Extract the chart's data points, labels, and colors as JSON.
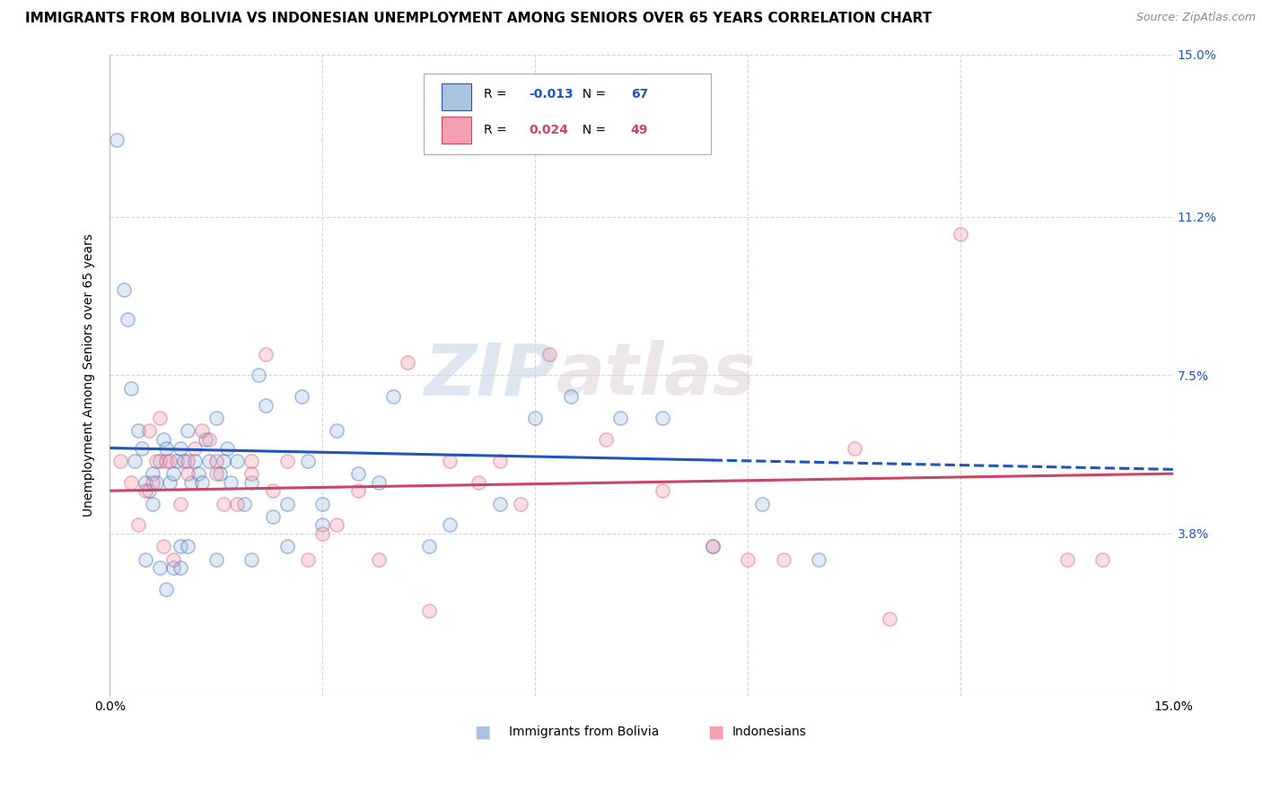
{
  "title": "IMMIGRANTS FROM BOLIVIA VS INDONESIAN UNEMPLOYMENT AMONG SENIORS OVER 65 YEARS CORRELATION CHART",
  "source": "Source: ZipAtlas.com",
  "ylabel": "Unemployment Among Seniors over 65 years",
  "xlim": [
    0.0,
    15.0
  ],
  "ylim": [
    0.0,
    15.0
  ],
  "yticks": [
    0.0,
    3.8,
    7.5,
    11.2,
    15.0
  ],
  "ytick_labels": [
    "",
    "3.8%",
    "7.5%",
    "11.2%",
    "15.0%"
  ],
  "legend_entries": [
    {
      "label": "Immigrants from Bolivia",
      "R": -0.013,
      "N": 67,
      "color": "#a8c4e0"
    },
    {
      "label": "Indonesians",
      "R": 0.024,
      "N": 49,
      "color": "#f4a0b0"
    }
  ],
  "watermark_zip": "ZIP",
  "watermark_atlas": "atlas",
  "blue_scatter_x": [
    0.1,
    0.2,
    0.25,
    0.3,
    0.35,
    0.4,
    0.45,
    0.5,
    0.55,
    0.6,
    0.65,
    0.7,
    0.75,
    0.8,
    0.85,
    0.9,
    0.95,
    1.0,
    1.05,
    1.1,
    1.15,
    1.2,
    1.25,
    1.3,
    1.35,
    1.4,
    1.5,
    1.55,
    1.6,
    1.65,
    1.7,
    1.8,
    1.9,
    2.0,
    2.1,
    2.2,
    2.3,
    2.5,
    2.7,
    2.8,
    3.0,
    3.2,
    3.5,
    3.8,
    4.0,
    4.5,
    4.8,
    5.5,
    6.0,
    6.5,
    7.2,
    7.8,
    8.5,
    9.2,
    10.0,
    2.0,
    1.0,
    0.6,
    0.7,
    0.8,
    0.9,
    1.0,
    1.1,
    0.5,
    1.5,
    2.5,
    3.0
  ],
  "blue_scatter_y": [
    13.0,
    9.5,
    8.8,
    7.2,
    5.5,
    6.2,
    5.8,
    5.0,
    4.8,
    5.2,
    5.0,
    5.5,
    6.0,
    5.8,
    5.0,
    5.2,
    5.5,
    5.8,
    5.5,
    6.2,
    5.0,
    5.5,
    5.2,
    5.0,
    6.0,
    5.5,
    6.5,
    5.2,
    5.5,
    5.8,
    5.0,
    5.5,
    4.5,
    5.0,
    7.5,
    6.8,
    4.2,
    4.5,
    7.0,
    5.5,
    4.5,
    6.2,
    5.2,
    5.0,
    7.0,
    3.5,
    4.0,
    4.5,
    6.5,
    7.0,
    6.5,
    6.5,
    3.5,
    4.5,
    3.2,
    3.2,
    3.5,
    4.5,
    3.0,
    2.5,
    3.0,
    3.0,
    3.5,
    3.2,
    3.2,
    3.5,
    4.0
  ],
  "pink_scatter_x": [
    0.15,
    0.3,
    0.4,
    0.5,
    0.6,
    0.65,
    0.7,
    0.8,
    0.85,
    0.9,
    1.0,
    1.1,
    1.2,
    1.3,
    1.4,
    1.5,
    1.6,
    1.8,
    2.0,
    2.2,
    2.5,
    2.8,
    3.0,
    3.5,
    3.8,
    4.2,
    4.8,
    5.2,
    5.8,
    6.2,
    7.0,
    7.8,
    8.5,
    9.0,
    9.5,
    10.5,
    11.0,
    12.0,
    13.5,
    14.0,
    0.55,
    0.75,
    1.1,
    1.5,
    2.0,
    2.3,
    3.2,
    4.5,
    5.5
  ],
  "pink_scatter_y": [
    5.5,
    5.0,
    4.0,
    4.8,
    5.0,
    5.5,
    6.5,
    5.5,
    5.5,
    3.2,
    4.5,
    5.2,
    5.8,
    6.2,
    6.0,
    5.2,
    4.5,
    4.5,
    5.2,
    8.0,
    5.5,
    3.2,
    3.8,
    4.8,
    3.2,
    7.8,
    5.5,
    5.0,
    4.5,
    8.0,
    6.0,
    4.8,
    3.5,
    3.2,
    3.2,
    5.8,
    1.8,
    10.8,
    3.2,
    3.2,
    6.2,
    3.5,
    5.5,
    5.5,
    5.5,
    4.8,
    4.0,
    2.0,
    5.5
  ],
  "blue_line_color": "#2255bb",
  "pink_line_color": "#cc4466",
  "blue_trend_y_start": 5.8,
  "blue_trend_y_end": 5.3,
  "blue_solid_end_x": 8.5,
  "pink_trend_y_start": 4.8,
  "pink_trend_y_end": 5.2,
  "grid_color": "#cccccc",
  "background_color": "#ffffff",
  "title_fontsize": 11,
  "source_fontsize": 9,
  "ylabel_fontsize": 10,
  "scatter_size": 120,
  "scatter_alpha": 0.35,
  "scatter_edgewidth": 1.2
}
